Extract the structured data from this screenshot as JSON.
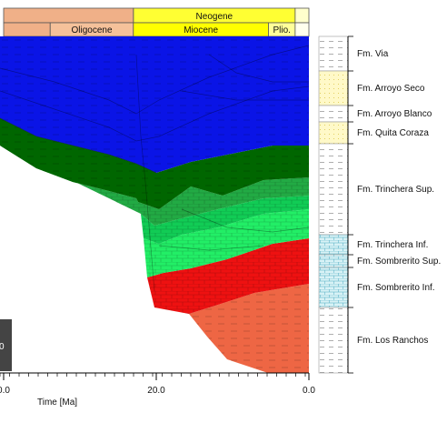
{
  "chart_data": {
    "type": "area",
    "xlabel": "Time [Ma]",
    "x_axis_ticks": [
      "0.0",
      "20.0",
      "0.0"
    ],
    "xlim": [
      40,
      0
    ],
    "period_bar": [
      {
        "label": "Neogene",
        "start_ma": 23.0,
        "end_ma": 1.8,
        "color": "#ffff33"
      },
      {
        "label": "",
        "start_ma": 1.8,
        "end_ma": 0.0,
        "color": "#ffffcc"
      },
      {
        "label": "",
        "start_ma": 40.0,
        "end_ma": 23.0,
        "color": "#f0b088"
      }
    ],
    "epoch_bar": [
      {
        "label": "",
        "start_ma": 40.0,
        "end_ma": 33.9,
        "color": "#f0b088"
      },
      {
        "label": "Oligocene",
        "start_ma": 33.9,
        "end_ma": 23.0,
        "color": "#f5c19a"
      },
      {
        "label": "Miocene",
        "start_ma": 23.0,
        "end_ma": 5.3,
        "color": "#ffff00"
      },
      {
        "label": "Plio.",
        "start_ma": 5.3,
        "end_ma": 1.8,
        "color": "#ffff99"
      },
      {
        "label": "",
        "start_ma": 1.8,
        "end_ma": 0.0,
        "color": "#ffffee"
      }
    ],
    "formations": [
      {
        "name": "Fm. Via",
        "color": "#0a14e6",
        "column_fill": "#ffffff"
      },
      {
        "name": "Fm. Arroyo Seco",
        "color": "#0a14e6",
        "column_fill": "#fff9c8"
      },
      {
        "name": "Fm. Arroyo Blanco",
        "color": "#0a14e6",
        "column_fill": "#ffffff"
      },
      {
        "name": "Fm. Quita Coraza",
        "color": "#006600",
        "column_fill": "#fff9c8"
      },
      {
        "name": "Fm. Trinchera Sup.",
        "color": "#22aa44",
        "column_fill": "#ffffff"
      },
      {
        "name": "Fm. Trinchera Inf.",
        "color": "#11cc55",
        "column_fill": "#d8f2f6"
      },
      {
        "name": "Fm. Sombrerito Sup.",
        "color": "#22ee66",
        "column_fill": "#d8f2f6"
      },
      {
        "name": "Fm. Sombrerito Inf.",
        "color": "#ee1111",
        "column_fill": "#d8f2f6"
      },
      {
        "name": "Fm. Los Ranchos",
        "color": "#ee6644",
        "column_fill": "#ffffff"
      }
    ]
  }
}
